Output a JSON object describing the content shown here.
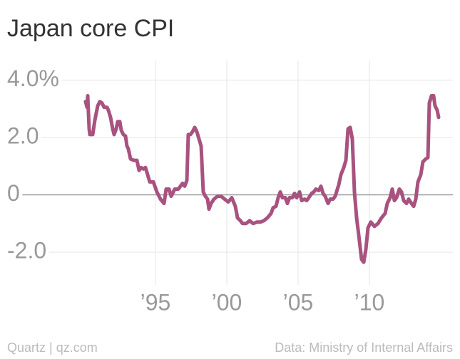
{
  "chart_data": {
    "type": "line",
    "title": "Japan core CPI",
    "source": "Data: Ministry of Internal Affairs",
    "credit": "Quartz | qz.com",
    "xlim": [
      1984.6,
      2015.85
    ],
    "xticks": [
      {
        "value": 1995,
        "label": "’95"
      },
      {
        "value": 2000,
        "label": "’00"
      },
      {
        "value": 2005,
        "label": "’05"
      },
      {
        "value": 2010,
        "label": "’10"
      }
    ],
    "ylim": [
      -3.14,
      4.68
    ],
    "yticks": [
      {
        "value": 4,
        "label": "4.0%"
      },
      {
        "value": 2,
        "label": "2.0"
      },
      0,
      {
        "value": -2,
        "label": "-2.0"
      }
    ],
    "grid": true,
    "series": [
      {
        "name": "Japan core CPI",
        "color": "#a8527f",
        "x": [
          1990.1,
          1990.2,
          1990.25,
          1990.35,
          1990.4,
          1990.6,
          1990.75,
          1990.95,
          1991.1,
          1991.25,
          1991.4,
          1991.6,
          1991.7,
          1991.85,
          1992,
          1992.1,
          1992.25,
          1992.35,
          1992.5,
          1992.6,
          1992.75,
          1992.9,
          1993,
          1993.1,
          1993.25,
          1993.5,
          1993.7,
          1993.85,
          1994,
          1994.15,
          1994.3,
          1994.45,
          1994.6,
          1994.85,
          1995.1,
          1995.35,
          1995.6,
          1995.75,
          1995.95,
          1996.1,
          1996.35,
          1996.6,
          1996.75,
          1996.9,
          1997.05,
          1997.2,
          1997.3,
          1997.45,
          1997.6,
          1997.75,
          1997.9,
          1998.05,
          1998.2,
          1998.35,
          1998.5,
          1998.65,
          1998.75,
          1998.9,
          1999.1,
          1999.35,
          1999.6,
          1999.85,
          2000.1,
          2000.35,
          2000.6,
          2000.75,
          2000.95,
          2001.1,
          2001.35,
          2001.6,
          2001.85,
          2002.1,
          2002.35,
          2002.6,
          2002.85,
          2003.1,
          2003.25,
          2003.45,
          2003.6,
          2003.75,
          2003.9,
          2004.1,
          2004.25,
          2004.4,
          2004.6,
          2004.75,
          2004.9,
          2005.1,
          2005.25,
          2005.45,
          2005.6,
          2005.75,
          2005.95,
          2006.1,
          2006.25,
          2006.45,
          2006.6,
          2006.75,
          2006.9,
          2007.1,
          2007.25,
          2007.45,
          2007.6,
          2007.85,
          2008,
          2008.2,
          2008.35,
          2008.5,
          2008.65,
          2008.8,
          2008.95,
          2009.1,
          2009.25,
          2009.45,
          2009.6,
          2009.75,
          2009.9,
          2010.1,
          2010.35,
          2010.6,
          2010.85,
          2011.1,
          2011.25,
          2011.45,
          2011.6,
          2011.75,
          2011.9,
          2012.1,
          2012.25,
          2012.4,
          2012.6,
          2012.75,
          2012.95,
          2013.1,
          2013.25,
          2013.4,
          2013.6,
          2013.75,
          2013.95,
          2014.1,
          2014.2,
          2014.35,
          2014.5,
          2014.6,
          2014.75,
          2014.85
        ],
        "values": [
          3.25,
          3.05,
          3.45,
          2.3,
          2.1,
          2.1,
          2.6,
          3.1,
          3.25,
          3.2,
          3.05,
          3.05,
          2.95,
          2.7,
          2.3,
          2.1,
          2.3,
          2.55,
          2.55,
          2.25,
          2.1,
          2.05,
          1.7,
          1.6,
          1.25,
          1.2,
          1.2,
          0.85,
          0.95,
          0.9,
          0.95,
          0.7,
          0.45,
          0.45,
          0.1,
          -0.15,
          -0.3,
          0.2,
          0.2,
          -0.05,
          0.2,
          0.2,
          0.3,
          0.4,
          0.3,
          0.5,
          2.1,
          2.1,
          2.2,
          2.35,
          2.2,
          1.95,
          1.7,
          0.1,
          -0.05,
          -0.15,
          -0.5,
          -0.3,
          -0.15,
          -0.05,
          -0.05,
          -0.15,
          -0.25,
          -0.1,
          -0.4,
          -0.8,
          -0.9,
          -1.0,
          -1.0,
          -0.9,
          -1.0,
          -0.95,
          -0.95,
          -0.9,
          -0.8,
          -0.65,
          -0.45,
          -0.4,
          -0.1,
          0.1,
          -0.1,
          -0.1,
          -0.3,
          -0.1,
          -0.1,
          0.05,
          -0.1,
          0.1,
          -0.2,
          -0.15,
          -0.2,
          -0.1,
          0.05,
          0.1,
          0.2,
          0.15,
          0.3,
          0.05,
          -0.05,
          -0.3,
          -0.15,
          -0.15,
          -0.05,
          0.35,
          0.7,
          0.95,
          1.2,
          2.3,
          2.35,
          1.95,
          0.1,
          -0.8,
          -1.4,
          -2.25,
          -2.35,
          -1.9,
          -1.15,
          -0.95,
          -1.1,
          -1.0,
          -0.8,
          -0.65,
          -0.3,
          -0.1,
          0.2,
          -0.2,
          -0.1,
          0.2,
          0.1,
          -0.2,
          -0.3,
          -0.15,
          -0.3,
          -0.4,
          -0.15,
          0.45,
          0.7,
          1.15,
          1.25,
          1.3,
          3.2,
          3.45,
          3.45,
          3.1,
          2.95,
          2.7
        ]
      }
    ]
  }
}
